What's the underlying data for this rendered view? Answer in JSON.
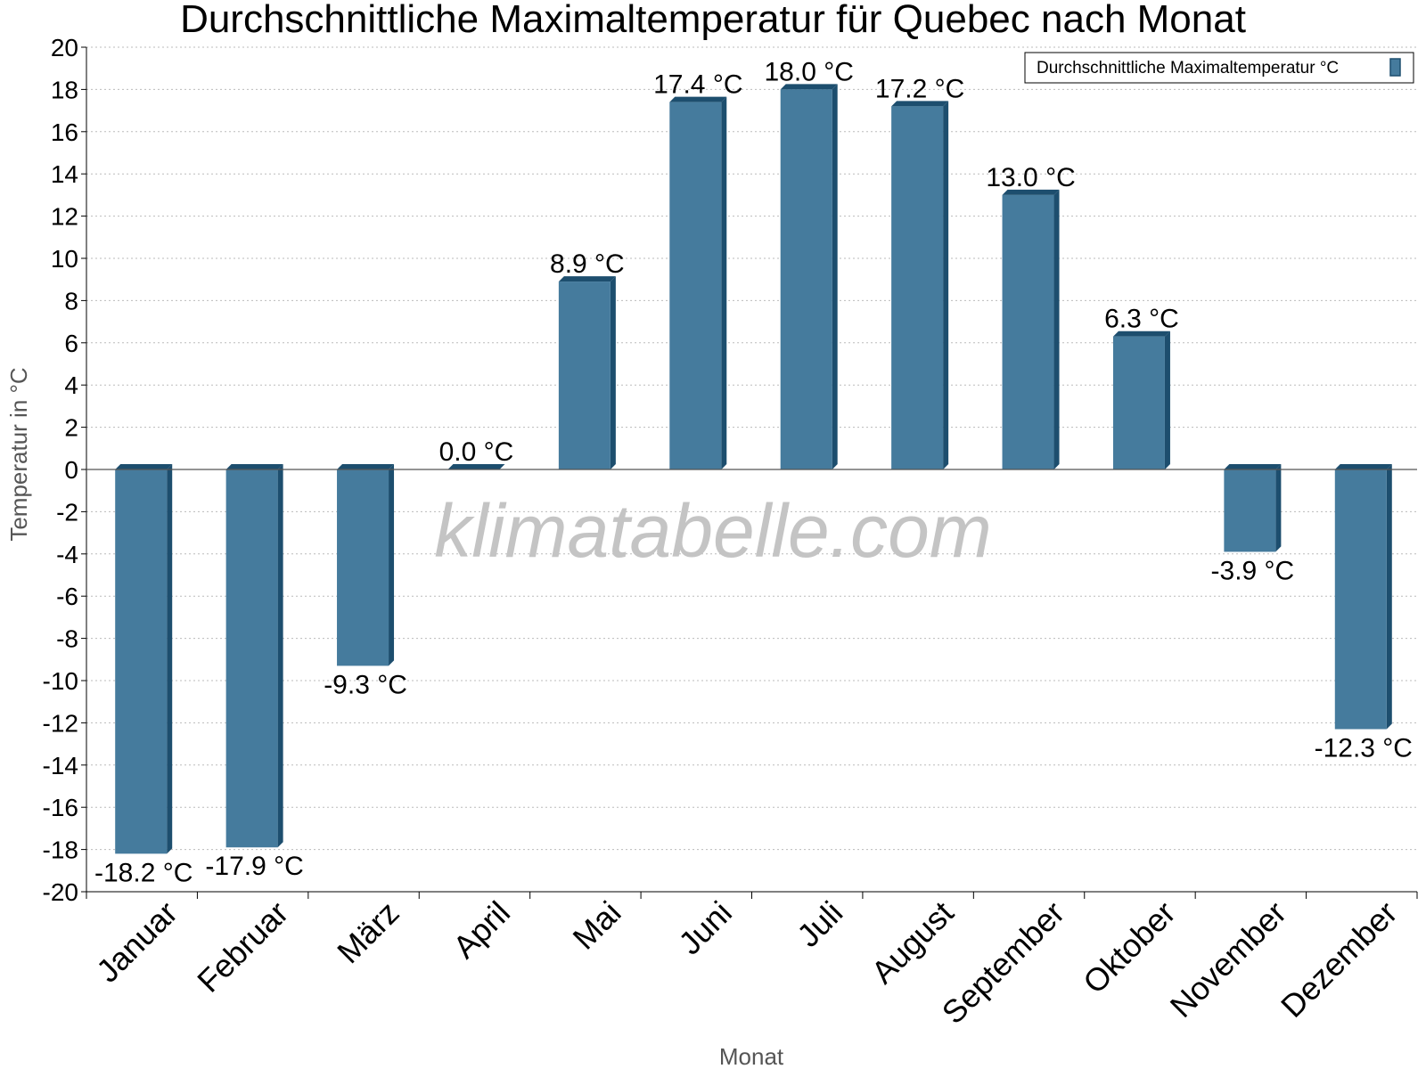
{
  "chart_data": {
    "type": "bar",
    "title": "Durchschnittliche Maximaltemperatur für Quebec nach Monat",
    "xlabel": "Monat",
    "ylabel": "Temperatur in °C",
    "categories": [
      "Januar",
      "Februar",
      "März",
      "April",
      "Mai",
      "Juni",
      "Juli",
      "August",
      "September",
      "Oktober",
      "November",
      "Dezember"
    ],
    "series": [
      {
        "name": "Durchschnittliche Maximaltemperatur °C",
        "values": [
          -18.2,
          -17.9,
          -9.3,
          0.0,
          8.9,
          17.4,
          18.0,
          17.2,
          13.0,
          6.3,
          -3.9,
          -12.3
        ],
        "labels": [
          "-18.2 °C",
          "-17.9 °C",
          "-9.3 °C",
          "0.0 °C",
          "8.9 °C",
          "17.4 °C",
          "18.0 °C",
          "17.2 °C",
          "13.0 °C",
          "6.3 °C",
          "-3.9 °C",
          "-12.3 °C"
        ]
      }
    ],
    "yticks": [
      "20",
      "18",
      "16",
      "14",
      "12",
      "10",
      "8",
      "6",
      "4",
      "2",
      "0",
      "-2",
      "-4",
      "-6",
      "-8",
      "-10",
      "-12",
      "-14",
      "-16",
      "-18",
      "-20"
    ],
    "ylim": [
      -20,
      20
    ],
    "ystep": 2,
    "grid": true,
    "legend_position": "top-right",
    "watermark": "klimatabelle.com",
    "colors": {
      "bar_face": "#457b9d",
      "bar_side": "#1d4e6e",
      "bar_top": "#1d4e6e",
      "grid": "#bbbbbb",
      "axis": "#000000"
    }
  }
}
